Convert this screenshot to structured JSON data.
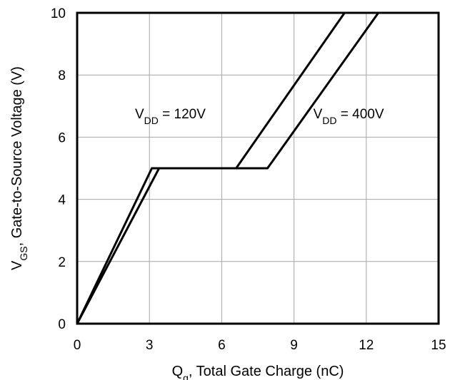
{
  "chart_data": {
    "type": "line",
    "xlabel": {
      "main": "Q",
      "sub": "g",
      "rest": ", Total Gate Charge (nC)"
    },
    "ylabel": {
      "main": "V",
      "sub": "GS",
      "rest": ", Gate-to-Source Voltage (V)"
    },
    "xlim": [
      0,
      15
    ],
    "ylim": [
      0,
      10
    ],
    "xticks": [
      "0",
      "3",
      "6",
      "9",
      "12",
      "15"
    ],
    "yticks": [
      "0",
      "2",
      "4",
      "6",
      "8",
      "10"
    ],
    "grid": true,
    "series": [
      {
        "name": {
          "main": "V",
          "sub": "DD",
          "rest": " = 120V"
        },
        "points": [
          [
            0,
            0
          ],
          [
            3.1,
            5.0
          ],
          [
            6.6,
            5.0
          ],
          [
            11.1,
            10.0
          ]
        ]
      },
      {
        "name": {
          "main": "V",
          "sub": "DD",
          "rest": " = 400V"
        },
        "points": [
          [
            0,
            0
          ],
          [
            3.4,
            5.0
          ],
          [
            7.9,
            5.0
          ],
          [
            12.5,
            10.0
          ]
        ]
      }
    ],
    "annotations": [
      {
        "series": 0,
        "x": 2.4,
        "y": 6.6
      },
      {
        "series": 1,
        "x": 9.8,
        "y": 6.6
      }
    ]
  }
}
